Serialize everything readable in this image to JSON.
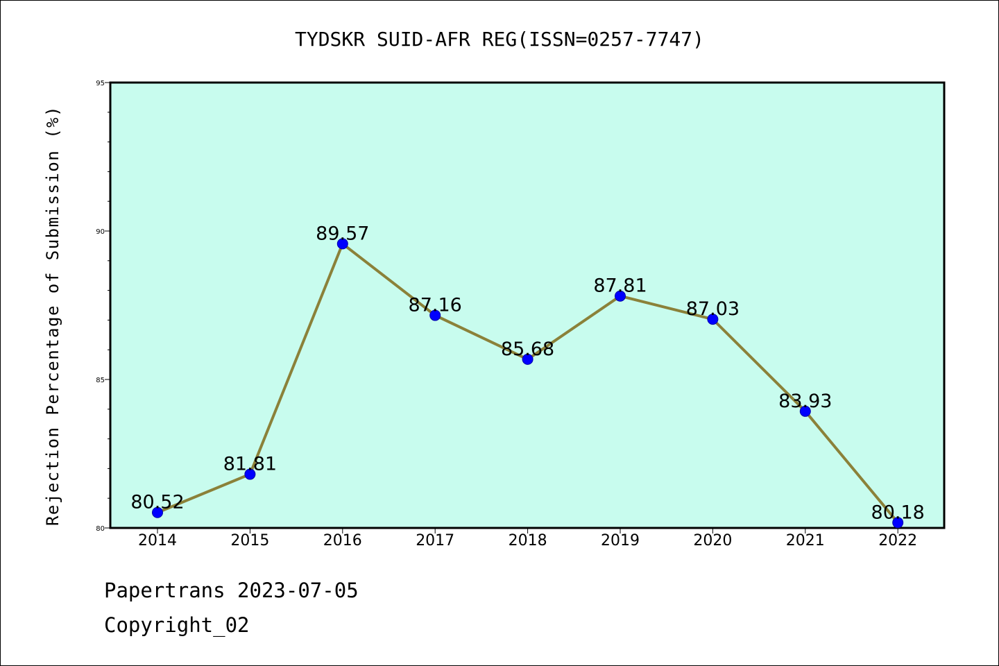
{
  "chart_data": {
    "type": "line",
    "title": "TYDSKR SUID-AFR REG(ISSN=0257-7747)",
    "xlabel": "",
    "ylabel": "Rejection Percentage of Submission (%)",
    "categories": [
      "2014",
      "2015",
      "2016",
      "2017",
      "2018",
      "2019",
      "2020",
      "2021",
      "2022"
    ],
    "series": [
      {
        "values": [
          80.52,
          81.81,
          89.57,
          87.16,
          85.68,
          87.81,
          87.03,
          83.93,
          80.18
        ],
        "labels": [
          "80.52",
          "81.81",
          "89.57",
          "87.16",
          "85.68",
          "87.81",
          "87.03",
          "83.93",
          "80.18"
        ],
        "line_color": "#8b8139",
        "marker_color": "#0000ff"
      }
    ],
    "ylim": [
      80,
      95
    ],
    "yticks": [
      80,
      85,
      90,
      95
    ],
    "ytick_labels": [
      "80",
      "85",
      "90",
      "95"
    ],
    "plot_background": "#c8fcee",
    "grid": false
  },
  "footer": {
    "line1": "Papertrans 2023-07-05",
    "line2": "Copyright_02"
  }
}
